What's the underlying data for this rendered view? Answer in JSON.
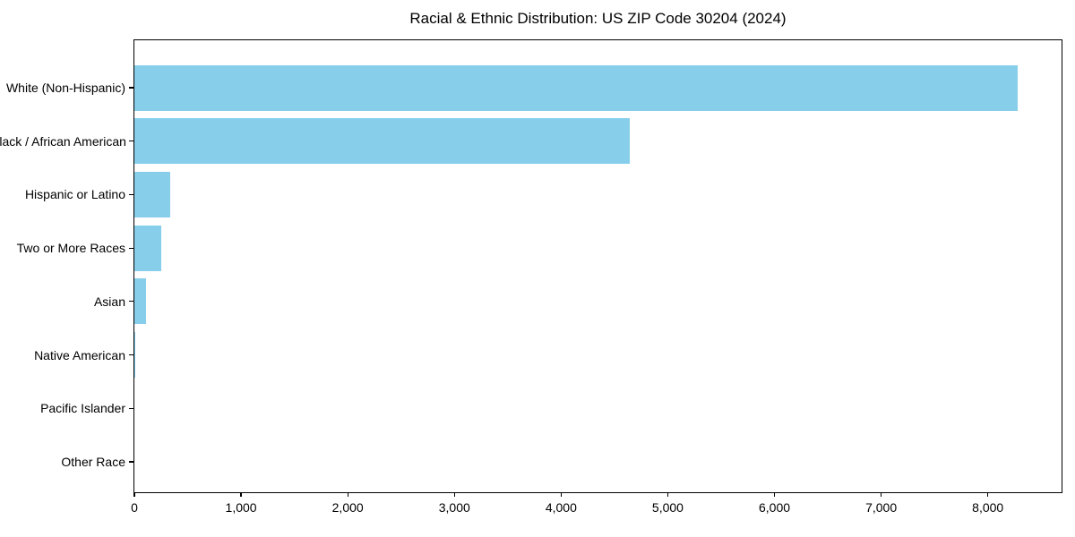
{
  "chart_data": {
    "type": "bar",
    "orientation": "horizontal",
    "title": "Racial & Ethnic Distribution: US ZIP Code 30204 (2024)",
    "categories": [
      "White (Non-Hispanic)",
      "Black / African American",
      "Hispanic or Latino",
      "Two or More Races",
      "Asian",
      "Native American",
      "Pacific Islander",
      "Other Race"
    ],
    "values": [
      8280,
      4645,
      340,
      250,
      110,
      10,
      0,
      0
    ],
    "xlabel": "",
    "ylabel": "",
    "xlim": [
      0,
      8691
    ],
    "x_ticks": [
      0,
      1000,
      2000,
      3000,
      4000,
      5000,
      6000,
      7000,
      8000
    ],
    "x_tick_labels": [
      "0",
      "1,000",
      "2,000",
      "3,000",
      "4,000",
      "5,000",
      "6,000",
      "7,000",
      "8,000"
    ],
    "bar_color": "#87CEEB",
    "axis_color": "#000000",
    "background_color": "#FFFFFF",
    "grid": false,
    "legend": null,
    "value_labels_shown": false
  }
}
